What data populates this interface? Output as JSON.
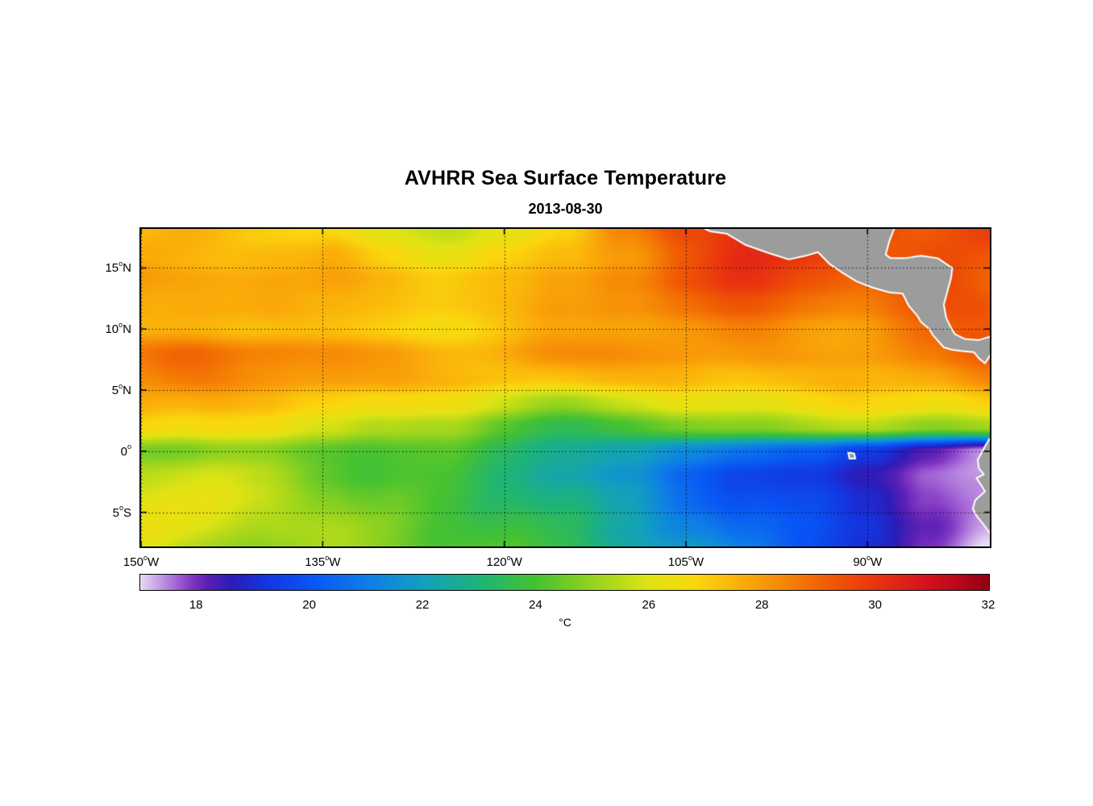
{
  "chart_data": {
    "type": "heatmap",
    "title": "AVHRR Sea Surface Temperature",
    "subtitle": "2013-08-30",
    "units": "°C",
    "lon_range": [
      -150,
      -79.9
    ],
    "lat_range": [
      -7.8,
      18.2
    ],
    "lons": [
      -150,
      -145,
      -140,
      -135,
      -130,
      -125,
      -120,
      -115,
      -110,
      -105,
      -100,
      -95,
      -90,
      -85,
      -80
    ],
    "lats": [
      18,
      16,
      14,
      12,
      10,
      8,
      6,
      4,
      2,
      0,
      -2,
      -4,
      -6,
      -8
    ],
    "sst_grid": [
      [
        27.2,
        27.4,
        27.2,
        26.8,
        25.8,
        25.6,
        26.2,
        26.8,
        28.3,
        29.6,
        30.1,
        29.8,
        29.6,
        29.4,
        29.6
      ],
      [
        27.4,
        27.6,
        27.8,
        27.4,
        26.6,
        26.3,
        26.8,
        27.3,
        28.3,
        29.3,
        29.9,
        29.7,
        29.4,
        29.5,
        29.3
      ],
      [
        27.9,
        28.1,
        28.0,
        27.7,
        27.4,
        27.1,
        27.3,
        27.9,
        28.7,
        29.4,
        29.7,
        29.4,
        29.2,
        29.6,
        29.2
      ],
      [
        27.7,
        27.9,
        27.8,
        27.5,
        27.4,
        27.2,
        27.4,
        27.9,
        28.4,
        28.9,
        29.1,
        28.9,
        28.8,
        29.1,
        29.4
      ],
      [
        27.4,
        27.5,
        27.3,
        27.2,
        27.1,
        27.0,
        27.2,
        27.5,
        27.9,
        28.2,
        28.4,
        28.2,
        28.2,
        28.6,
        29.0
      ],
      [
        28.4,
        28.7,
        28.5,
        28.2,
        28.0,
        27.8,
        27.7,
        27.9,
        28.1,
        28.2,
        28.1,
        28.0,
        28.1,
        28.4,
        28.8
      ],
      [
        28.2,
        28.4,
        28.2,
        28.0,
        27.8,
        27.5,
        27.3,
        27.2,
        27.3,
        27.5,
        27.4,
        27.3,
        27.4,
        27.9,
        28.3
      ],
      [
        27.8,
        27.7,
        27.4,
        27.0,
        26.6,
        26.2,
        25.7,
        25.4,
        25.7,
        26.1,
        26.3,
        26.4,
        26.6,
        26.9,
        27.2
      ],
      [
        27.1,
        26.9,
        26.5,
        26.0,
        25.4,
        24.9,
        24.2,
        23.9,
        24.1,
        24.5,
        24.8,
        25.1,
        25.3,
        25.1,
        25.6
      ],
      [
        25.0,
        24.9,
        24.7,
        24.5,
        24.2,
        24.0,
        23.4,
        22.9,
        22.2,
        21.3,
        20.8,
        20.3,
        19.3,
        18.3,
        17.6
      ],
      [
        25.9,
        25.7,
        25.2,
        24.7,
        24.2,
        23.9,
        23.2,
        22.4,
        21.4,
        20.4,
        19.9,
        19.4,
        18.5,
        17.7,
        17.4
      ],
      [
        26.1,
        25.9,
        25.5,
        25.0,
        24.5,
        24.0,
        23.4,
        22.7,
        21.7,
        20.7,
        20.2,
        19.7,
        18.9,
        17.9,
        17.2
      ],
      [
        26.0,
        25.8,
        25.5,
        25.1,
        24.7,
        24.2,
        23.7,
        23.1,
        22.2,
        21.2,
        20.4,
        19.9,
        19.2,
        18.1,
        17.0
      ],
      [
        25.7,
        25.5,
        25.2,
        24.9,
        24.7,
        24.2,
        23.9,
        23.4,
        22.7,
        21.7,
        20.7,
        19.9,
        19.1,
        17.9,
        16.9
      ]
    ],
    "colormap": {
      "domain": [
        17,
        32
      ],
      "stops": [
        [
          17.0,
          "#E8DCF4"
        ],
        [
          17.3,
          "#C9A4E6"
        ],
        [
          17.6,
          "#A86CD8"
        ],
        [
          17.9,
          "#8238C4"
        ],
        [
          18.2,
          "#5A20B4"
        ],
        [
          18.6,
          "#2E1CB8"
        ],
        [
          19.2,
          "#1436E0"
        ],
        [
          20.0,
          "#0955F5"
        ],
        [
          21.0,
          "#0E7EE8"
        ],
        [
          22.0,
          "#12A0C0"
        ],
        [
          23.0,
          "#1FB478"
        ],
        [
          24.0,
          "#46C232"
        ],
        [
          25.0,
          "#96D41E"
        ],
        [
          26.0,
          "#E0E414"
        ],
        [
          26.8,
          "#FAD80E"
        ],
        [
          27.6,
          "#FBB00A"
        ],
        [
          28.4,
          "#F68606"
        ],
        [
          29.2,
          "#F05A04"
        ],
        [
          30.0,
          "#E93410"
        ],
        [
          30.8,
          "#D8151E"
        ],
        [
          31.5,
          "#B80718"
        ],
        [
          32.0,
          "#900010"
        ]
      ]
    },
    "gridlines": {
      "lats": [
        15,
        10,
        5,
        0,
        -5
      ],
      "lons": [
        -150,
        -135,
        -120,
        -105,
        -90
      ]
    },
    "lat_ticks": [
      {
        "label": "15",
        "sup": "o",
        "dir": "N",
        "lat": 15
      },
      {
        "label": "10",
        "sup": "o",
        "dir": "N",
        "lat": 10
      },
      {
        "label": "5",
        "sup": "o",
        "dir": "N",
        "lat": 5
      },
      {
        "label": "0",
        "sup": "o",
        "dir": "",
        "lat": 0
      },
      {
        "label": "5",
        "sup": "o",
        "dir": "S",
        "lat": -5
      }
    ],
    "lon_ticks": [
      {
        "label": "150",
        "sup": "o",
        "dir": "W",
        "lon": -150
      },
      {
        "label": "135",
        "sup": "o",
        "dir": "W",
        "lon": -135
      },
      {
        "label": "120",
        "sup": "o",
        "dir": "W",
        "lon": -120
      },
      {
        "label": "105",
        "sup": "o",
        "dir": "W",
        "lon": -105
      },
      {
        "label": "90",
        "sup": "o",
        "dir": "W",
        "lon": -90
      }
    ],
    "colorbar_ticks": [
      {
        "label": "18",
        "value": 18
      },
      {
        "label": "20",
        "value": 20
      },
      {
        "label": "22",
        "value": 22
      },
      {
        "label": "24",
        "value": 24
      },
      {
        "label": "26",
        "value": 26
      },
      {
        "label": "28",
        "value": 28
      },
      {
        "label": "30",
        "value": 30
      },
      {
        "label": "32",
        "value": 32
      }
    ],
    "land_color": "#9c9c9c",
    "coast_color": "#ffffff",
    "axis_color": "#000000",
    "land_polygons": [
      {
        "name": "central-america",
        "points": [
          [
            -104.2,
            19.2
          ],
          [
            -103.6,
            18.3
          ],
          [
            -103.0,
            18.0
          ],
          [
            -101.6,
            17.8
          ],
          [
            -100.1,
            16.9
          ],
          [
            -98.1,
            16.2
          ],
          [
            -96.5,
            15.7
          ],
          [
            -95.1,
            16.0
          ],
          [
            -94.1,
            16.3
          ],
          [
            -93.1,
            15.3
          ],
          [
            -92.2,
            14.7
          ],
          [
            -90.9,
            13.9
          ],
          [
            -89.6,
            13.4
          ],
          [
            -88.2,
            13.0
          ],
          [
            -87.1,
            12.9
          ],
          [
            -86.6,
            11.9
          ],
          [
            -85.9,
            11.1
          ],
          [
            -85.6,
            10.6
          ],
          [
            -84.9,
            10.0
          ],
          [
            -84.6,
            9.5
          ],
          [
            -83.7,
            8.5
          ],
          [
            -83.0,
            8.3
          ],
          [
            -82.2,
            8.2
          ],
          [
            -81.2,
            8.1
          ],
          [
            -80.8,
            7.6
          ],
          [
            -80.3,
            7.2
          ],
          [
            -79.9,
            7.8
          ],
          [
            -79.5,
            8.6
          ],
          [
            -79.1,
            8.9
          ],
          [
            -78.0,
            8.7
          ],
          [
            -78.0,
            9.7
          ],
          [
            -79.5,
            9.5
          ],
          [
            -80.8,
            9.1
          ],
          [
            -82.0,
            9.2
          ],
          [
            -82.8,
            9.6
          ],
          [
            -83.1,
            10.1
          ],
          [
            -83.5,
            10.9
          ],
          [
            -83.7,
            12.0
          ],
          [
            -83.4,
            13.1
          ],
          [
            -83.1,
            14.2
          ],
          [
            -83.0,
            15.0
          ],
          [
            -84.2,
            15.8
          ],
          [
            -85.6,
            16.0
          ],
          [
            -86.9,
            15.8
          ],
          [
            -88.1,
            15.8
          ],
          [
            -88.5,
            16.1
          ],
          [
            -88.2,
            17.2
          ],
          [
            -87.8,
            18.2
          ],
          [
            -87.6,
            19.2
          ]
        ]
      },
      {
        "name": "south-america",
        "points": [
          [
            -78.2,
            3.0
          ],
          [
            -78.9,
            2.0
          ],
          [
            -79.6,
            1.4
          ],
          [
            -80.0,
            0.9
          ],
          [
            -80.3,
            0.4
          ],
          [
            -80.5,
            0.0
          ],
          [
            -80.9,
            -0.7
          ],
          [
            -80.8,
            -1.4
          ],
          [
            -80.4,
            -1.9
          ],
          [
            -81.0,
            -2.2
          ],
          [
            -80.6,
            -2.8
          ],
          [
            -80.3,
            -3.3
          ],
          [
            -81.1,
            -4.0
          ],
          [
            -81.3,
            -4.7
          ],
          [
            -81.0,
            -5.3
          ],
          [
            -80.5,
            -5.9
          ],
          [
            -79.9,
            -6.7
          ],
          [
            -79.4,
            -7.4
          ],
          [
            -79.0,
            -8.2
          ],
          [
            -78.7,
            -8.8
          ],
          [
            -75.5,
            -8.8
          ],
          [
            -75.5,
            3.0
          ]
        ]
      },
      {
        "name": "galapagos-island",
        "points": [
          [
            -91.6,
            -0.1
          ],
          [
            -91.1,
            -0.2
          ],
          [
            -91.0,
            -0.6
          ],
          [
            -91.5,
            -0.6
          ]
        ]
      }
    ]
  }
}
